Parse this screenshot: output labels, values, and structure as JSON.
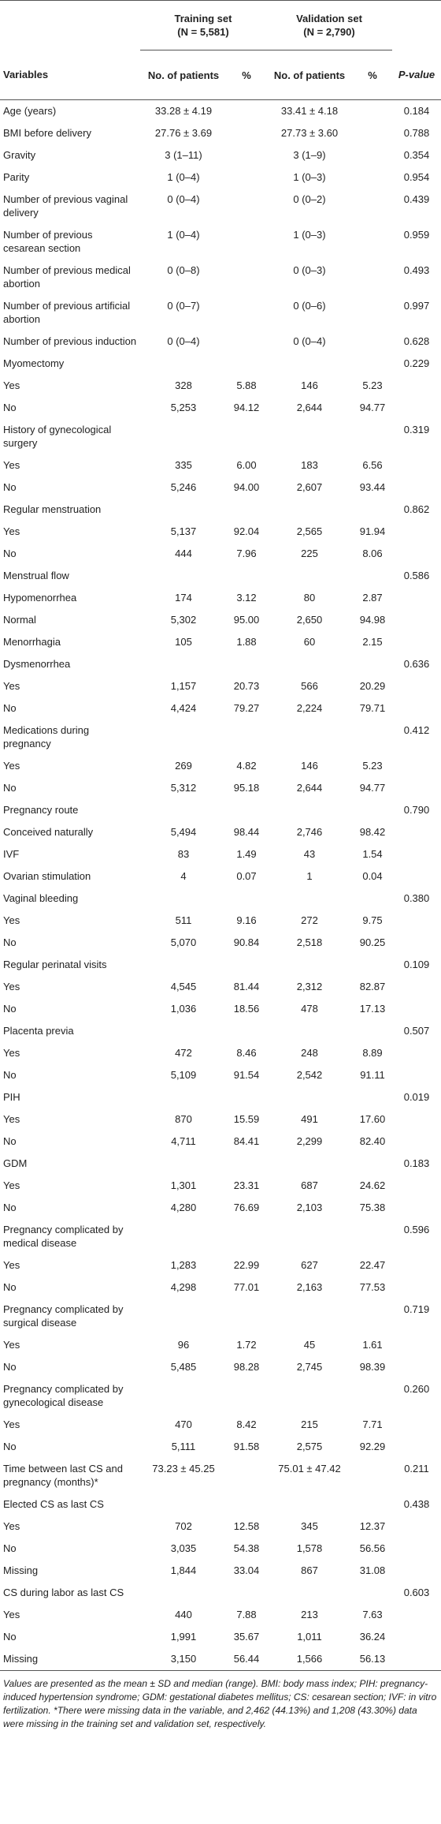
{
  "table": {
    "groups": [
      {
        "name": "Training set",
        "n": "(N = 5,581)"
      },
      {
        "name": "Validation set",
        "n": "(N = 2,790)"
      }
    ],
    "headers": [
      "Variables",
      "No. of patients",
      "%",
      "No. of patients",
      "%",
      "P-value"
    ],
    "rows": [
      {
        "label": "Age (years)",
        "train_n": "33.28 ± 4.19",
        "val_n": "33.41 ± 4.18",
        "p": "0.184"
      },
      {
        "label": "BMI before delivery",
        "train_n": "27.76 ± 3.69",
        "val_n": "27.73 ± 3.60",
        "p": "0.788"
      },
      {
        "label": "Gravity",
        "train_n": "3 (1–11)",
        "val_n": "3 (1–9)",
        "p": "0.354"
      },
      {
        "label": "Parity",
        "train_n": "1 (0–4)",
        "val_n": "1 (0–3)",
        "p": "0.954"
      },
      {
        "label": "Number of previous vaginal delivery",
        "train_n": "0 (0–4)",
        "val_n": "0 (0–2)",
        "p": "0.439"
      },
      {
        "label": "Number of previous cesarean section",
        "train_n": "1 (0–4)",
        "val_n": "1 (0–3)",
        "p": "0.959"
      },
      {
        "label": "Number of previous medical abortion",
        "train_n": "0 (0–8)",
        "val_n": "0 (0–3)",
        "p": "0.493"
      },
      {
        "label": "Number of previous artificial abortion",
        "train_n": "0 (0–7)",
        "val_n": "0 (0–6)",
        "p": "0.997"
      },
      {
        "label": "Number of previous induction",
        "train_n": "0 (0–4)",
        "val_n": "0 (0–4)",
        "p": "0.628"
      },
      {
        "label": "Myomectomy",
        "p": "0.229"
      },
      {
        "label": "Yes",
        "train_n": "328",
        "train_pct": "5.88",
        "val_n": "146",
        "val_pct": "5.23"
      },
      {
        "label": "No",
        "train_n": "5,253",
        "train_pct": "94.12",
        "val_n": "2,644",
        "val_pct": "94.77"
      },
      {
        "label": "History of gynecological surgery",
        "p": "0.319"
      },
      {
        "label": "Yes",
        "train_n": "335",
        "train_pct": "6.00",
        "val_n": "183",
        "val_pct": "6.56"
      },
      {
        "label": "No",
        "train_n": "5,246",
        "train_pct": "94.00",
        "val_n": "2,607",
        "val_pct": "93.44"
      },
      {
        "label": "Regular menstruation",
        "p": "0.862"
      },
      {
        "label": "Yes",
        "train_n": "5,137",
        "train_pct": "92.04",
        "val_n": "2,565",
        "val_pct": "91.94"
      },
      {
        "label": "No",
        "train_n": "444",
        "train_pct": "7.96",
        "val_n": "225",
        "val_pct": "8.06"
      },
      {
        "label": "Menstrual flow",
        "p": "0.586"
      },
      {
        "label": "Hypomenorrhea",
        "train_n": "174",
        "train_pct": "3.12",
        "val_n": "80",
        "val_pct": "2.87"
      },
      {
        "label": "Normal",
        "train_n": "5,302",
        "train_pct": "95.00",
        "val_n": "2,650",
        "val_pct": "94.98"
      },
      {
        "label": "Menorrhagia",
        "train_n": "105",
        "train_pct": "1.88",
        "val_n": "60",
        "val_pct": "2.15"
      },
      {
        "label": "Dysmenorrhea",
        "p": "0.636"
      },
      {
        "label": "Yes",
        "train_n": "1,157",
        "train_pct": "20.73",
        "val_n": "566",
        "val_pct": "20.29"
      },
      {
        "label": "No",
        "train_n": "4,424",
        "train_pct": "79.27",
        "val_n": "2,224",
        "val_pct": "79.71"
      },
      {
        "label": "Medications during pregnancy",
        "p": "0.412"
      },
      {
        "label": "Yes",
        "train_n": "269",
        "train_pct": "4.82",
        "val_n": "146",
        "val_pct": "5.23"
      },
      {
        "label": "No",
        "train_n": "5,312",
        "train_pct": "95.18",
        "val_n": "2,644",
        "val_pct": "94.77"
      },
      {
        "label": "Pregnancy route",
        "p": "0.790"
      },
      {
        "label": "Conceived naturally",
        "train_n": "5,494",
        "train_pct": "98.44",
        "val_n": "2,746",
        "val_pct": "98.42"
      },
      {
        "label": "IVF",
        "train_n": "83",
        "train_pct": "1.49",
        "val_n": "43",
        "val_pct": "1.54"
      },
      {
        "label": "Ovarian stimulation",
        "train_n": "4",
        "train_pct": "0.07",
        "val_n": "1",
        "val_pct": "0.04"
      },
      {
        "label": "Vaginal bleeding",
        "p": "0.380"
      },
      {
        "label": "Yes",
        "train_n": "511",
        "train_pct": "9.16",
        "val_n": "272",
        "val_pct": "9.75"
      },
      {
        "label": "No",
        "train_n": "5,070",
        "train_pct": "90.84",
        "val_n": "2,518",
        "val_pct": "90.25"
      },
      {
        "label": "Regular perinatal visits",
        "p": "0.109"
      },
      {
        "label": "Yes",
        "train_n": "4,545",
        "train_pct": "81.44",
        "val_n": "2,312",
        "val_pct": "82.87"
      },
      {
        "label": "No",
        "train_n": "1,036",
        "train_pct": "18.56",
        "val_n": "478",
        "val_pct": "17.13"
      },
      {
        "label": "Placenta previa",
        "p": "0.507"
      },
      {
        "label": "Yes",
        "train_n": "472",
        "train_pct": "8.46",
        "val_n": "248",
        "val_pct": "8.89"
      },
      {
        "label": "No",
        "train_n": "5,109",
        "train_pct": "91.54",
        "val_n": "2,542",
        "val_pct": "91.11"
      },
      {
        "label": "PIH",
        "p": "0.019"
      },
      {
        "label": "Yes",
        "train_n": "870",
        "train_pct": "15.59",
        "val_n": "491",
        "val_pct": "17.60"
      },
      {
        "label": "No",
        "train_n": "4,711",
        "train_pct": "84.41",
        "val_n": "2,299",
        "val_pct": "82.40"
      },
      {
        "label": "GDM",
        "p": "0.183"
      },
      {
        "label": "Yes",
        "train_n": "1,301",
        "train_pct": "23.31",
        "val_n": "687",
        "val_pct": "24.62"
      },
      {
        "label": "No",
        "train_n": "4,280",
        "train_pct": "76.69",
        "val_n": "2,103",
        "val_pct": "75.38"
      },
      {
        "label": "Pregnancy complicated by medical disease",
        "p": "0.596"
      },
      {
        "label": "Yes",
        "train_n": "1,283",
        "train_pct": "22.99",
        "val_n": "627",
        "val_pct": "22.47"
      },
      {
        "label": "No",
        "train_n": "4,298",
        "train_pct": "77.01",
        "val_n": "2,163",
        "val_pct": "77.53"
      },
      {
        "label": "Pregnancy complicated by surgical disease",
        "p": "0.719"
      },
      {
        "label": "Yes",
        "train_n": "96",
        "train_pct": "1.72",
        "val_n": "45",
        "val_pct": "1.61"
      },
      {
        "label": "No",
        "train_n": "5,485",
        "train_pct": "98.28",
        "val_n": "2,745",
        "val_pct": "98.39"
      },
      {
        "label": "Pregnancy complicated by gynecological disease",
        "p": "0.260"
      },
      {
        "label": "Yes",
        "train_n": "470",
        "train_pct": "8.42",
        "val_n": "215",
        "val_pct": "7.71"
      },
      {
        "label": "No",
        "train_n": "5,111",
        "train_pct": "91.58",
        "val_n": "2,575",
        "val_pct": "92.29"
      },
      {
        "label": "Time between last CS and pregnancy (months)*",
        "train_n": "73.23 ± 45.25",
        "val_n": "75.01 ± 47.42",
        "p": "0.211"
      },
      {
        "label": "Elected CS as last CS",
        "p": "0.438"
      },
      {
        "label": "Yes",
        "train_n": "702",
        "train_pct": "12.58",
        "val_n": "345",
        "val_pct": "12.37"
      },
      {
        "label": "No",
        "train_n": "3,035",
        "train_pct": "54.38",
        "val_n": "1,578",
        "val_pct": "56.56"
      },
      {
        "label": "Missing",
        "train_n": "1,844",
        "train_pct": "33.04",
        "val_n": "867",
        "val_pct": "31.08"
      },
      {
        "label": "CS during labor as last CS",
        "p": "0.603"
      },
      {
        "label": "Yes",
        "train_n": "440",
        "train_pct": "7.88",
        "val_n": "213",
        "val_pct": "7.63"
      },
      {
        "label": "No",
        "train_n": "1,991",
        "train_pct": "35.67",
        "val_n": "1,011",
        "val_pct": "36.24"
      },
      {
        "label": "Missing",
        "train_n": "3,150",
        "train_pct": "56.44",
        "val_n": "1,566",
        "val_pct": "56.13"
      }
    ]
  },
  "footnote": "Values are presented as the mean ± SD and median (range). BMI: body mass index; PIH: pregnancy-induced hypertension syndrome; GDM: gestational diabetes mellitus; CS: cesarean section; IVF: in vitro fertilization. *There were missing data in the variable, and 2,462 (44.13%) and 1,208 (43.30%) data were missing in the training set and validation set, respectively."
}
